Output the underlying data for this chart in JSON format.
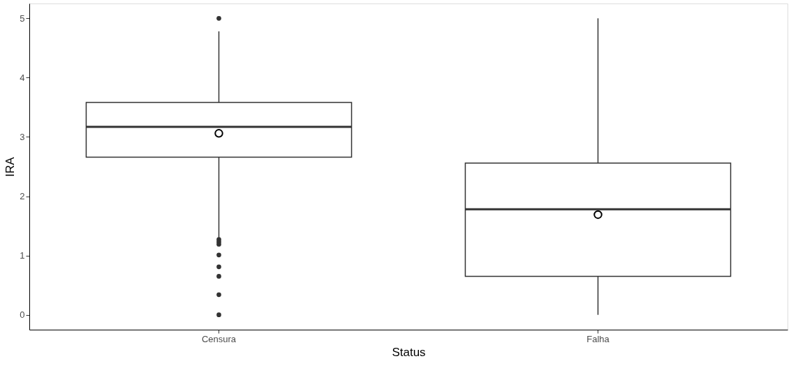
{
  "chart_data": {
    "type": "box",
    "xlabel": "Status",
    "ylabel": "IRA",
    "categories": [
      "Censura",
      "Falha"
    ],
    "boxes": [
      {
        "low": 1.3,
        "q1": 2.66,
        "median": 3.17,
        "q3": 3.58,
        "high": 4.78,
        "mean": 3.06,
        "outliers": [
          5.0,
          1.27,
          1.23,
          1.19,
          1.01,
          0.81,
          0.65,
          0.34,
          0.0
        ]
      },
      {
        "low": 0.0,
        "q1": 0.65,
        "median": 1.78,
        "q3": 2.56,
        "high": 5.0,
        "mean": 1.69
      }
    ],
    "ylim": [
      -0.25,
      5.25
    ],
    "yticks": [
      0,
      1,
      2,
      3,
      4,
      5
    ],
    "grid": false
  }
}
